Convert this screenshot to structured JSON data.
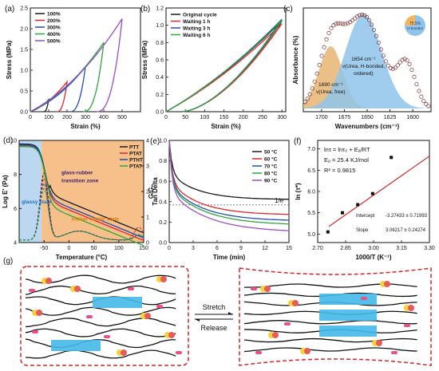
{
  "colors": {
    "black": "#1a1a1a",
    "red": "#e0262a",
    "blue": "#1f4fb3",
    "green": "#2aa83a",
    "purple": "#9b4dc7",
    "brick": "#c0392b",
    "tan": "#e8b473",
    "lightblue": "#8fc4ea",
    "orange": "#f7c08a",
    "dashedRed": "#c33",
    "frame": "#d62728",
    "pink": "#e8508a",
    "yellow": "#f5c928",
    "teal": "#5fd0e0"
  },
  "chart_data": [
    {
      "panel_label": "(a)",
      "type": "line",
      "xlabel": "Strain (%)",
      "ylabel": "Stress (MPa)",
      "xlim": [
        0,
        600
      ],
      "ylim": [
        0,
        2.5
      ],
      "xticks": [
        "0",
        "100",
        "200",
        "300",
        "400",
        "500"
      ],
      "yticks": [
        "0.0",
        "0.5",
        "1.0",
        "1.5",
        "2.0",
        "2.5"
      ],
      "legend_position": "top-left",
      "series": [
        {
          "name": "100%",
          "color": "#1a1a1a",
          "peak": [
            100,
            0.29
          ]
        },
        {
          "name": "200%",
          "color": "#e0262a",
          "peak": [
            200,
            0.72
          ]
        },
        {
          "name": "300%",
          "color": "#1f4fb3",
          "peak": [
            300,
            1.08
          ]
        },
        {
          "name": "400%",
          "color": "#2aa83a",
          "peak": [
            400,
            1.67
          ]
        },
        {
          "name": "500%",
          "color": "#9b4dc7",
          "peak": [
            500,
            2.24
          ]
        }
      ]
    },
    {
      "panel_label": "(b)",
      "type": "line",
      "xlabel": "Strain (%)",
      "ylabel": "Stress (MPa)",
      "xlim": [
        0,
        310
      ],
      "ylim": [
        0,
        1.2
      ],
      "xticks": [
        "0",
        "50",
        "100",
        "150",
        "200",
        "250",
        "300"
      ],
      "yticks": [
        "0.0",
        "0.2",
        "0.4",
        "0.6",
        "0.8",
        "1.0",
        "1.2"
      ],
      "legend_position": "top-left",
      "series": [
        {
          "name": "Original cycle",
          "color": "#1a1a1a",
          "peak": [
            300,
            1.05
          ]
        },
        {
          "name": "Waiting 1 h",
          "color": "#e0262a",
          "peak": [
            300,
            1.02
          ]
        },
        {
          "name": "Waiting 3 h",
          "color": "#1f4fb3",
          "peak": [
            300,
            1.07
          ]
        },
        {
          "name": "Waiting 6 h",
          "color": "#2aa83a",
          "peak": [
            300,
            1.06
          ]
        }
      ]
    },
    {
      "panel_label": "(c)",
      "type": "area",
      "xlabel": "Wavenumbers (cm⁻¹)",
      "ylabel": "Absorbance (%)",
      "xlim": [
        1720,
        1580
      ],
      "xticks": [
        "1700",
        "1675",
        "1650",
        "1625",
        "1600"
      ],
      "annotations": [
        "1654 cm⁻¹",
        "ν(Urea, H-bonded,",
        "ordered)",
        "1690 cm⁻¹",
        "ν(Urea, free)"
      ],
      "pie": {
        "label1": "75.5%",
        "label2": "H-bonded",
        "values": [
          75.5,
          24.5
        ],
        "colors": [
          "#8fc4ea",
          "#f5b35a"
        ]
      }
    },
    {
      "panel_label": "(d)",
      "type": "line",
      "xlabel": "Temperature (°C)",
      "ylabel": "Log E' (Pa)",
      "ylabel2": "Tan Delta",
      "xlim": [
        -100,
        150
      ],
      "ylim": [
        4,
        10
      ],
      "ylim2": [
        0,
        4
      ],
      "xticks": [
        "-50",
        "0",
        "50",
        "100",
        "150"
      ],
      "yticks": [
        "4",
        "6",
        "8",
        "10"
      ],
      "yticks2": [
        "0",
        "1",
        "2",
        "3",
        "4"
      ],
      "legend_position": "top-right",
      "series": [
        {
          "name": "PTT",
          "color": "#1a1a1a"
        },
        {
          "name": "PTAT",
          "color": "#e0262a"
        },
        {
          "name": "PTHT",
          "color": "#1f4fb3"
        },
        {
          "name": "PTAT",
          "color": "#2aa83a"
        }
      ],
      "annotations": [
        "glass-rubber",
        "transition zone",
        "glassy state",
        "rubber elastic state"
      ]
    },
    {
      "panel_label": "(e)",
      "type": "line",
      "xlabel": "Time (min)",
      "ylabel": "G/G₀",
      "xlim": [
        0,
        15
      ],
      "ylim": [
        0,
        1.0
      ],
      "xticks": [
        "0",
        "3",
        "6",
        "9",
        "12",
        "15"
      ],
      "yticks": [
        "0.0",
        "0.2",
        "0.4",
        "0.6",
        "0.8",
        "1.0"
      ],
      "legend_position": "top-right",
      "ref_label": "1/e",
      "ref_value": 0.3679,
      "series": [
        {
          "name": "50 °C",
          "color": "#1a1a1a",
          "final": 0.42
        },
        {
          "name": "60 °C",
          "color": "#e0262a",
          "final": 0.27
        },
        {
          "name": "70 °C",
          "color": "#1f4fb3",
          "final": 0.21
        },
        {
          "name": "80 °C",
          "color": "#2aa83a",
          "final": 0.17
        },
        {
          "name": "90 °C",
          "color": "#9b4dc7",
          "final": 0.1
        }
      ]
    },
    {
      "panel_label": "(f)",
      "type": "scatter",
      "xlabel": "1000/T (K⁻¹)",
      "ylabel": "ln (τ*)",
      "xlim": [
        2.7,
        3.3
      ],
      "ylim": [
        4.8,
        7.2
      ],
      "xticks": [
        "2.70",
        "2.85",
        "3.00",
        "3.15",
        "3.30"
      ],
      "yticks": [
        "5.0",
        "5.5",
        "6.0",
        "6.5",
        "7.0"
      ],
      "x": [
        2.755,
        2.833,
        2.915,
        2.995,
        3.095
      ],
      "y": [
        5.05,
        5.5,
        5.69,
        5.95,
        6.8
      ],
      "fit": {
        "slope": 3.06217,
        "intercept": -3.27433
      },
      "eq1": "lnτ = lnτ₀ + Eₐ/RT",
      "eq2": "Eₐ = 25.4 KJ/mol",
      "eq3": "R² = 0.9815",
      "intercept_label": "Intercept",
      "intercept_val": "-3.27433 ± 0.71993",
      "slope_label": "Slope",
      "slope_val": "3.06217 ± 0.24274"
    }
  ],
  "panel_g": {
    "label": "(g)",
    "stretch": "Stretch",
    "release": "Release"
  }
}
